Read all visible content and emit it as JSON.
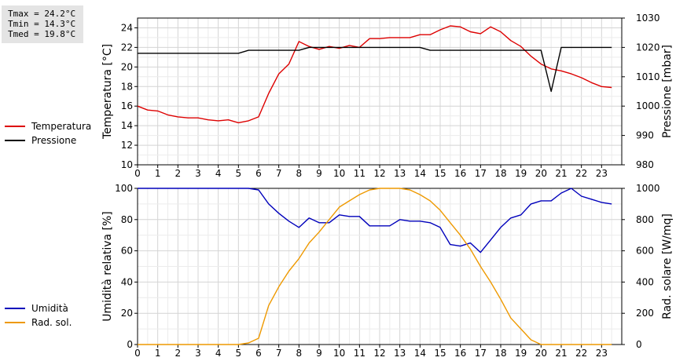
{
  "stats": {
    "tmax": "Tmax = 24.2°C",
    "tmin": "Tmin = 14.3°C",
    "tmed": "Tmed = 19.8°C"
  },
  "chart_data": [
    {
      "type": "line",
      "title": "",
      "xlabel": "",
      "x_ticks": [
        "0",
        "1",
        "2",
        "3",
        "4",
        "5",
        "6",
        "7",
        "8",
        "9",
        "10",
        "11",
        "12",
        "13",
        "14",
        "15",
        "16",
        "17",
        "18",
        "19",
        "20",
        "21",
        "22",
        "23"
      ],
      "xlim": [
        0,
        24
      ],
      "grid": true,
      "legend_placement": "left",
      "ylabel_left": "Temperatura [°C]",
      "ylim_left": [
        10,
        25
      ],
      "yticks_left": [
        "10",
        "12",
        "14",
        "16",
        "18",
        "20",
        "22",
        "24"
      ],
      "ylabel_right": "Pressione [mbar]",
      "ylim_right": [
        980,
        1030
      ],
      "yticks_right": [
        "980",
        "990",
        "1000",
        "1010",
        "1020",
        "1030"
      ],
      "series": [
        {
          "name": "Temperatura",
          "color": "#dd0000",
          "axis": "left",
          "x": [
            0,
            0.5,
            1,
            1.5,
            2,
            2.5,
            3,
            3.5,
            4,
            4.5,
            5,
            5.5,
            6,
            6.5,
            7,
            7.5,
            8,
            8.5,
            9,
            9.5,
            10,
            10.5,
            11,
            11.5,
            12,
            12.5,
            13,
            13.5,
            14,
            14.5,
            15,
            15.5,
            16,
            16.5,
            17,
            17.5,
            18,
            18.5,
            19,
            19.5,
            20,
            20.5,
            21,
            21.5,
            22,
            22.5,
            23,
            23.5
          ],
          "values": [
            16.0,
            15.6,
            15.5,
            15.1,
            14.9,
            14.8,
            14.8,
            14.6,
            14.5,
            14.6,
            14.3,
            14.5,
            14.9,
            17.3,
            19.3,
            20.3,
            22.6,
            22.1,
            21.8,
            22.1,
            21.9,
            22.2,
            22.0,
            22.9,
            22.9,
            23.0,
            23.0,
            23.0,
            23.3,
            23.3,
            23.8,
            24.2,
            24.1,
            23.6,
            23.4,
            24.1,
            23.6,
            22.7,
            22.1,
            21.1,
            20.3,
            19.8,
            19.6,
            19.3,
            18.9,
            18.4,
            18.0,
            17.9
          ]
        },
        {
          "name": "Pressione",
          "color": "#000000",
          "axis": "right",
          "x": [
            0,
            0.5,
            1,
            1.5,
            2,
            2.5,
            3,
            3.5,
            4,
            4.5,
            5,
            5.5,
            6,
            6.5,
            7,
            7.5,
            8,
            8.5,
            9,
            9.5,
            10,
            10.5,
            11,
            11.5,
            12,
            12.5,
            13,
            13.5,
            14,
            14.5,
            15,
            15.5,
            16,
            16.5,
            17,
            17.5,
            18,
            18.5,
            19,
            19.5,
            20,
            20.5,
            21,
            21.5,
            22,
            22.5,
            23,
            23.5
          ],
          "values": [
            1018,
            1018,
            1018,
            1018,
            1018,
            1018,
            1018,
            1018,
            1018,
            1018,
            1018,
            1019,
            1019,
            1019,
            1019,
            1019,
            1019,
            1020,
            1020,
            1020,
            1020,
            1020,
            1020,
            1020,
            1020,
            1020,
            1020,
            1020,
            1020,
            1019,
            1019,
            1019,
            1019,
            1019,
            1019,
            1019,
            1019,
            1019,
            1019,
            1019,
            1019,
            1005,
            1020,
            1020,
            1020,
            1020,
            1020,
            1020
          ]
        }
      ]
    },
    {
      "type": "line",
      "title": "",
      "xlabel": "",
      "x_ticks": [
        "0",
        "1",
        "2",
        "3",
        "4",
        "5",
        "6",
        "7",
        "8",
        "9",
        "10",
        "11",
        "12",
        "13",
        "14",
        "15",
        "16",
        "17",
        "18",
        "19",
        "20",
        "21",
        "22",
        "23"
      ],
      "xlim": [
        0,
        24
      ],
      "grid": true,
      "legend_placement": "left",
      "ylabel_left": "Umidità relativa [%]",
      "ylim_left": [
        0,
        100
      ],
      "yticks_left": [
        "0",
        "20",
        "40",
        "60",
        "80",
        "100"
      ],
      "ylabel_right": "Rad. solare [W/mq]",
      "ylim_right": [
        0,
        1000
      ],
      "yticks_right": [
        "0",
        "200",
        "400",
        "600",
        "800",
        "1000"
      ],
      "series": [
        {
          "name": "Umidità",
          "color": "#0000bb",
          "axis": "left",
          "x": [
            0,
            0.5,
            1,
            1.5,
            2,
            2.5,
            3,
            3.5,
            4,
            4.5,
            5,
            5.5,
            6,
            6.5,
            7,
            7.5,
            8,
            8.5,
            9,
            9.5,
            10,
            10.5,
            11,
            11.5,
            12,
            12.5,
            13,
            13.5,
            14,
            14.5,
            15,
            15.5,
            16,
            16.5,
            17,
            17.5,
            18,
            18.5,
            19,
            19.5,
            20,
            20.5,
            21,
            21.5,
            22,
            22.5,
            23,
            23.5
          ],
          "values": [
            100,
            100,
            100,
            100,
            100,
            100,
            100,
            100,
            100,
            100,
            100,
            100,
            99,
            90,
            84,
            79,
            75,
            81,
            78,
            78,
            83,
            82,
            82,
            76,
            76,
            76,
            80,
            79,
            79,
            78,
            75,
            64,
            63,
            65,
            59,
            67,
            75,
            81,
            83,
            90,
            92,
            92,
            97,
            100,
            95,
            93,
            91,
            90
          ]
        },
        {
          "name": "Rad. sol.",
          "color": "#ee9900",
          "axis": "right",
          "x": [
            0,
            0.5,
            1,
            1.5,
            2,
            2.5,
            3,
            3.5,
            4,
            4.5,
            5,
            5.5,
            6,
            6.5,
            7,
            7.5,
            8,
            8.5,
            9,
            9.5,
            10,
            10.5,
            11,
            11.5,
            12,
            12.5,
            13,
            13.5,
            14,
            14.5,
            15,
            15.5,
            16,
            16.5,
            17,
            17.5,
            18,
            18.5,
            19,
            19.5,
            20,
            20.5,
            21,
            21.5,
            22,
            22.5,
            23,
            23.5
          ],
          "values": [
            0,
            0,
            0,
            0,
            0,
            0,
            0,
            0,
            0,
            0,
            0,
            10,
            40,
            250,
            370,
            470,
            550,
            650,
            720,
            800,
            880,
            920,
            960,
            990,
            1000,
            1000,
            1000,
            990,
            960,
            920,
            860,
            780,
            700,
            610,
            500,
            400,
            290,
            170,
            100,
            30,
            0,
            0,
            0,
            0,
            0,
            0,
            0,
            0
          ]
        }
      ]
    }
  ]
}
